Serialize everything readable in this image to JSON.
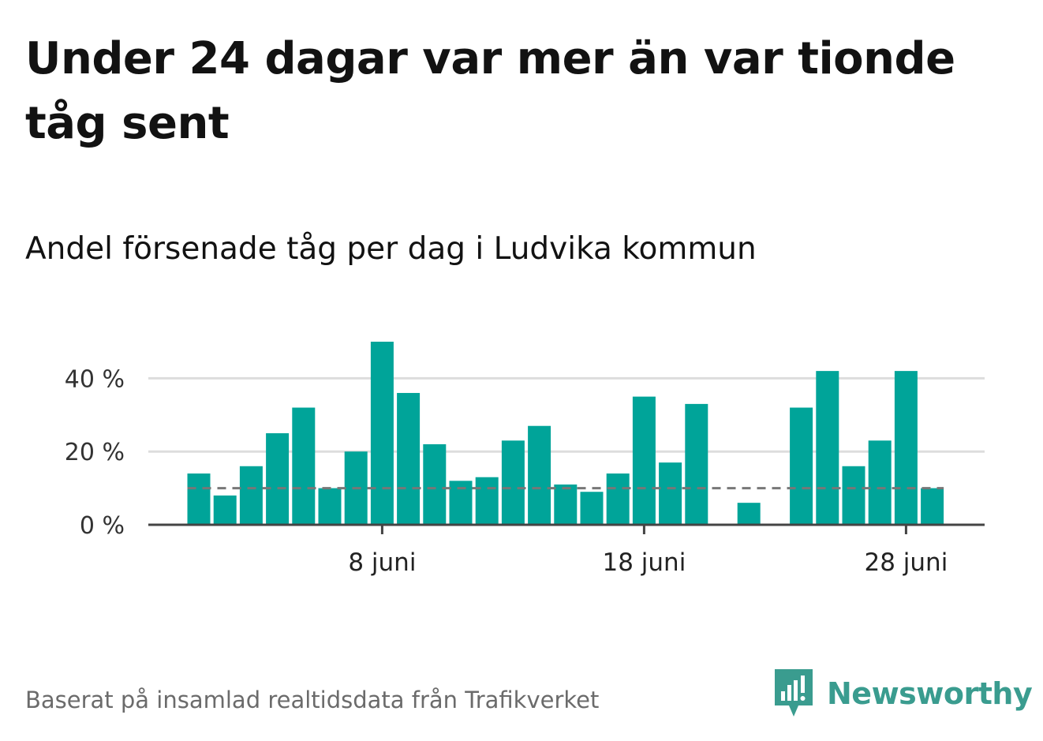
{
  "title": "Under 24 dagar var mer än var tionde tåg sent",
  "subtitle": "Andel försenade tåg per dag i Ludvika kommun",
  "footer": {
    "source": "Baserat på insamlad realtidsdata från Trafikverket",
    "brand": "Newsworthy"
  },
  "colors": {
    "bar": "#00a499",
    "reference_line": "#777777",
    "grid": "#dddddd",
    "axis": "#444444",
    "brand": "#3a9c8f"
  },
  "chart_data": {
    "type": "bar",
    "x": [
      1,
      2,
      3,
      4,
      5,
      6,
      7,
      8,
      9,
      10,
      11,
      12,
      13,
      14,
      15,
      16,
      17,
      18,
      19,
      20,
      21,
      22,
      23,
      24,
      25,
      26,
      27,
      28,
      29
    ],
    "values": [
      14,
      8,
      16,
      25,
      32,
      10,
      20,
      50,
      36,
      22,
      12,
      13,
      23,
      27,
      11,
      9,
      14,
      35,
      17,
      33,
      0,
      6,
      0,
      32,
      42,
      16,
      23,
      42,
      10
    ],
    "ylim": [
      0,
      50
    ],
    "yticks": [
      0,
      20,
      40
    ],
    "ytick_labels": [
      "0 %",
      "20 %",
      "40 %"
    ],
    "xticks": [
      8,
      18,
      28
    ],
    "xtick_labels": [
      "8 juni",
      "18 juni",
      "28 juni"
    ],
    "reference_value": 10,
    "grid": true,
    "xlabel": "",
    "ylabel": ""
  }
}
